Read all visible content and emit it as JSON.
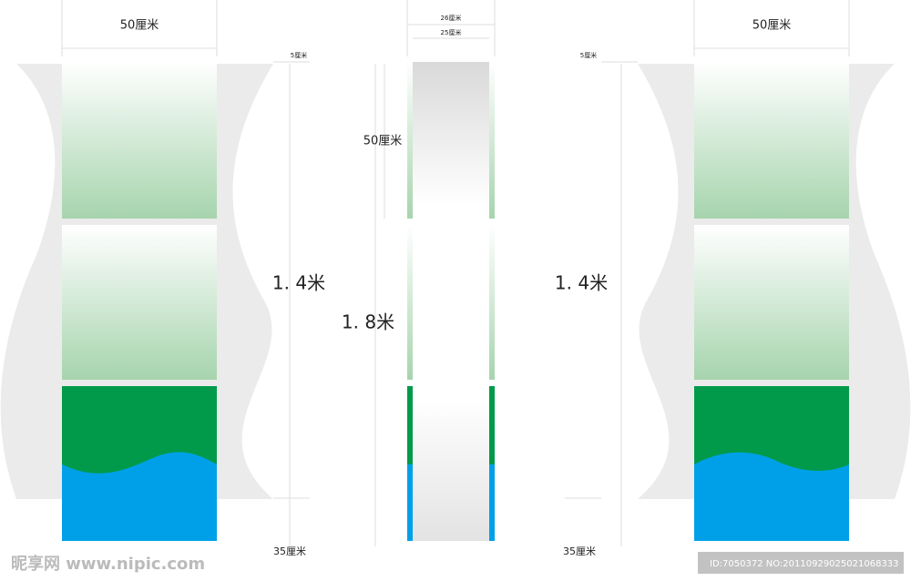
{
  "left_panel": {
    "width_label": "50厘米",
    "margin_label": "5厘米",
    "height_label": "1. 4米",
    "bottom_label": "35厘米"
  },
  "center_panel": {
    "outer_width_label": "26厘米",
    "inner_width_label": "25厘米",
    "section_label": "50厘米",
    "height_label": "1. 8米"
  },
  "right_panel": {
    "width_label": "50厘米",
    "margin_label": "5厘米",
    "height_label": "1. 4米",
    "bottom_label": "35厘米"
  },
  "watermark": {
    "logo": "昵享网 www.nipic.com",
    "id": "ID:7050372 NO:20110929025021068333"
  }
}
